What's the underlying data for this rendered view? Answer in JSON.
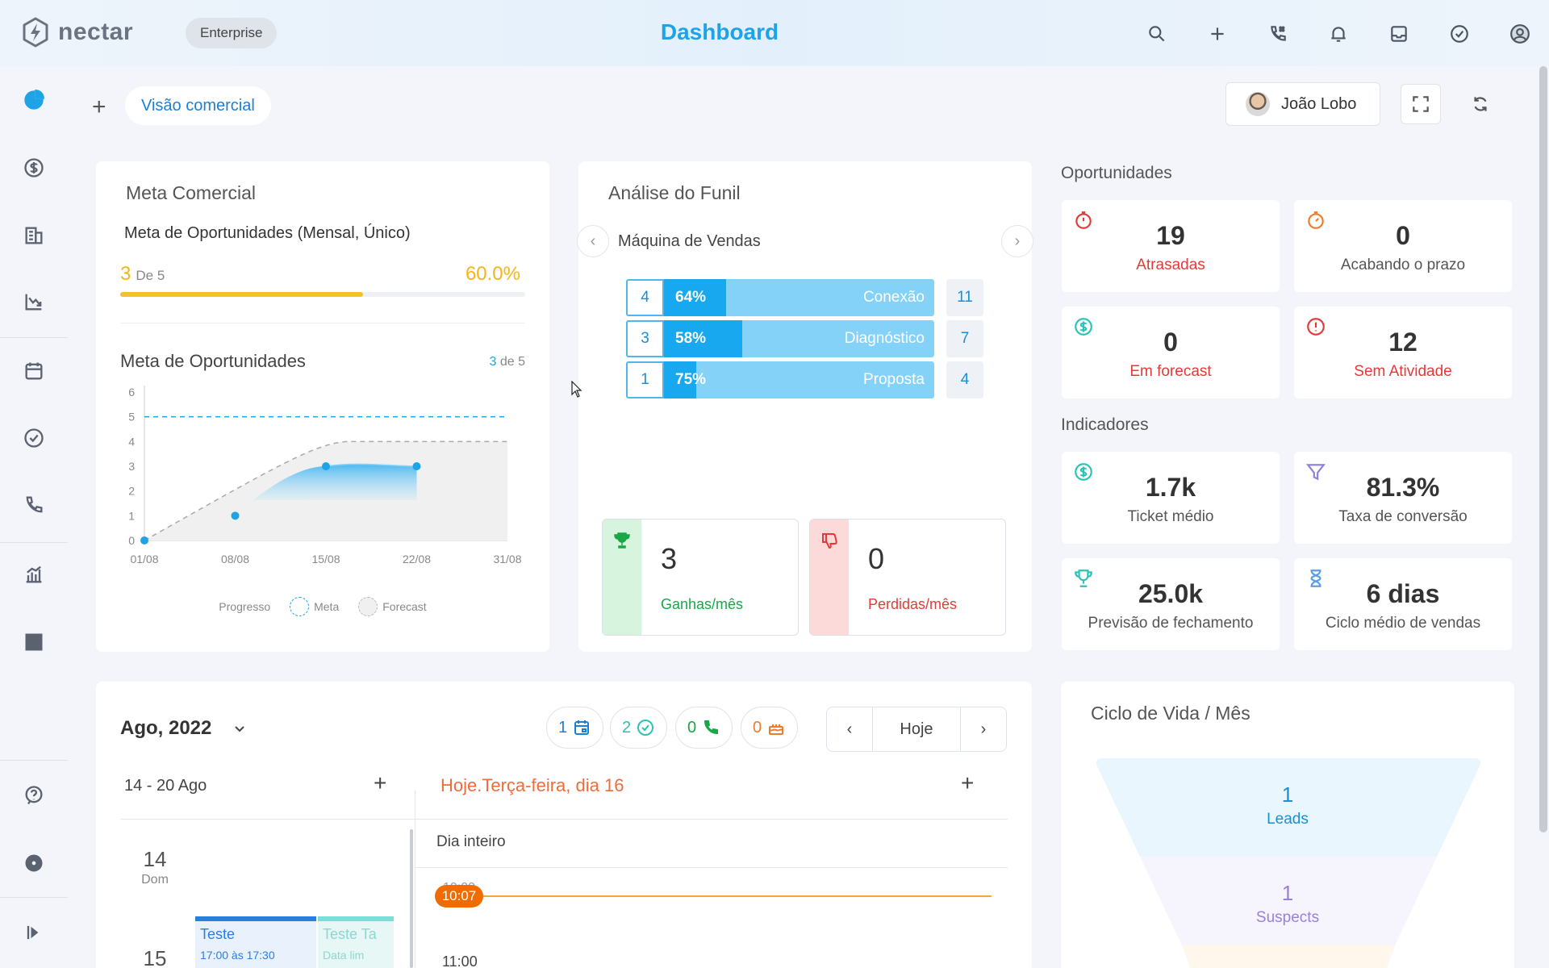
{
  "app": {
    "logo_text": "nectar",
    "plan": "Enterprise",
    "page_title": "Dashboard",
    "top_icons": [
      "search-icon",
      "plus-icon",
      "phone-icon",
      "bell-icon",
      "inbox-icon",
      "check-circle-icon",
      "user-circle-icon"
    ]
  },
  "sidebar": {
    "items": [
      "pie-chart-icon",
      "dollar-icon",
      "building-icon",
      "chart-down-icon",
      "calendar-icon",
      "check-circle-icon",
      "phone-icon",
      "bar-chart-icon",
      "widgets-icon",
      "help-icon",
      "settings-icon",
      "collapse-icon"
    ],
    "active_color": "#1ea3e6"
  },
  "toolbar": {
    "view_name": "Visão comercial",
    "user_name": "João Lobo"
  },
  "meta": {
    "title": "Meta Comercial",
    "subtitle": "Meta de Oportunidades (Mensal, Único)",
    "current": "3",
    "de_label": "De 5",
    "goal": 5,
    "percent": "60.0%",
    "progress": 0.6,
    "chart_title": "Meta de Oportunidades",
    "count_current": "3",
    "count_rest": "de 5"
  },
  "chart_data": {
    "type": "line",
    "x": [
      "01/08",
      "08/08",
      "15/08",
      "22/08",
      "31/08"
    ],
    "ylim": [
      0,
      6
    ],
    "yticks": [
      "0",
      "1",
      "2",
      "3",
      "4",
      "5",
      "6"
    ],
    "goal_line": 5,
    "series": [
      {
        "name": "Progresso",
        "points": [
          [
            "01/08",
            0
          ],
          [
            "08/08",
            1
          ],
          [
            "15/08",
            3
          ],
          [
            "22/08",
            3
          ]
        ]
      },
      {
        "name": "Meta",
        "points": [
          [
            "01/08",
            0
          ],
          [
            "15/08",
            4
          ],
          [
            "31/08",
            4
          ]
        ]
      },
      {
        "name": "Forecast",
        "points": [
          [
            "01/08",
            0
          ],
          [
            "31/08",
            4
          ]
        ]
      }
    ],
    "legend": [
      "Progresso",
      "Meta",
      "Forecast"
    ],
    "colors": {
      "progress": "#1ea3e6",
      "goal": "#1ea3e6",
      "forecast": "#bbbbbb"
    }
  },
  "funil": {
    "title": "Análise do Funil",
    "pipeline": "Máquina de Vendas",
    "stages": [
      {
        "count": "4",
        "percent": "64%",
        "fill": 0.23,
        "name": "Conexão",
        "total": "11"
      },
      {
        "count": "3",
        "percent": "58%",
        "fill": 0.29,
        "name": "Diagnóstico",
        "total": "7"
      },
      {
        "count": "1",
        "percent": "75%",
        "fill": 0.12,
        "name": "Proposta",
        "total": "4"
      }
    ],
    "won": {
      "value": "3",
      "label": "Ganhas/mês"
    },
    "lost": {
      "value": "0",
      "label": "Perdidas/mês"
    }
  },
  "oportunidades": {
    "title": "Oportunidades",
    "cards": [
      {
        "value": "19",
        "label": "Atrasadas",
        "icon": "stopwatch-icon",
        "red": true
      },
      {
        "value": "0",
        "label": "Acabando o prazo",
        "icon": "timer-icon",
        "red": false
      },
      {
        "value": "0",
        "label": "Em forecast",
        "icon": "dollar-circle-icon",
        "red": true
      },
      {
        "value": "12",
        "label": "Sem Atividade",
        "icon": "alert-circle-icon",
        "red": true
      }
    ]
  },
  "indicadores": {
    "title": "Indicadores",
    "cards": [
      {
        "value": "1.7k",
        "label": "Ticket médio",
        "icon": "dollar-circle-icon"
      },
      {
        "value": "81.3%",
        "label": "Taxa de conversão",
        "icon": "funnel-icon"
      },
      {
        "value": "25.0k",
        "label": "Previsão de fechamento",
        "icon": "trophy-icon"
      },
      {
        "value": "6 dias",
        "label": "Ciclo médio de vendas",
        "icon": "hourglass-icon"
      }
    ]
  },
  "calendar": {
    "month": "Ago, 2022",
    "counters": [
      {
        "value": "1",
        "icon": "calendar-icon",
        "color": "#1a7fd6"
      },
      {
        "value": "2",
        "icon": "check-circle-icon",
        "color": "#2ac3b5"
      },
      {
        "value": "0",
        "icon": "phone-icon",
        "color": "#19a845"
      },
      {
        "value": "0",
        "icon": "cake-icon",
        "color": "#f07a2a"
      }
    ],
    "today_button": "Hoje",
    "week_range": "14 - 20 Ago",
    "today_label": "Hoje.Terça-feira, dia 16",
    "days": [
      {
        "num": "14",
        "name": "Dom"
      },
      {
        "num": "15",
        "name": ""
      }
    ],
    "events": [
      {
        "title": "Teste",
        "time": "17:00 às 17:30"
      },
      {
        "title": "Teste Ta",
        "time": "Data lim"
      }
    ],
    "allday": "Dia inteiro",
    "hour_a": "10:00",
    "now": "10:07",
    "hour_b": "11:00"
  },
  "ciclo": {
    "title": "Ciclo de Vida / Mês",
    "levels": [
      {
        "value": "1",
        "label": "Leads",
        "color": "#1a8fd6"
      },
      {
        "value": "1",
        "label": "Suspects",
        "color": "#9b7fe0"
      }
    ]
  }
}
